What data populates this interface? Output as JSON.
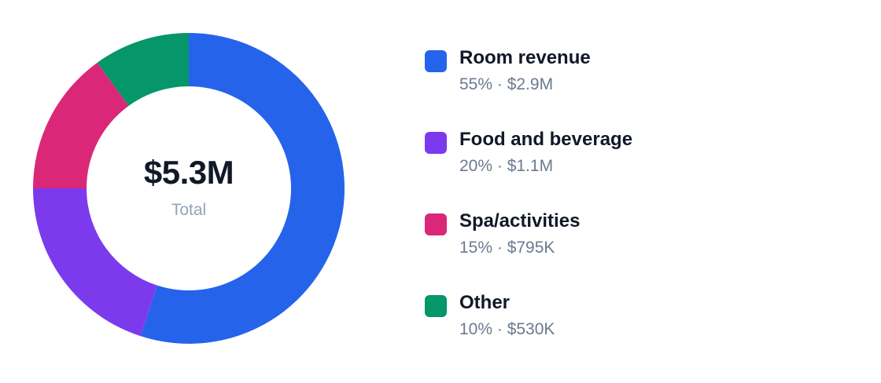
{
  "chart_data": {
    "type": "pie",
    "variant": "donut",
    "center": {
      "value": "$5.3M",
      "label": "Total"
    },
    "categories": [
      "Room revenue",
      "Food and beverage",
      "Spa/activities",
      "Other"
    ],
    "values": [
      55,
      20,
      15,
      10
    ],
    "colors": [
      "#2563eb",
      "#7c3aed",
      "#db2777",
      "#059669"
    ],
    "legend": {
      "placement": "right",
      "items": [
        {
          "name": "Room revenue",
          "detail": "55% · $2.9M",
          "color": "#2563eb"
        },
        {
          "name": "Food and beverage",
          "detail": "20% · $1.1M",
          "color": "#7c3aed"
        },
        {
          "name": "Spa/activities",
          "detail": "15% · $795K",
          "color": "#db2777"
        },
        {
          "name": "Other",
          "detail": "10% · $530K",
          "color": "#059669"
        }
      ]
    }
  }
}
